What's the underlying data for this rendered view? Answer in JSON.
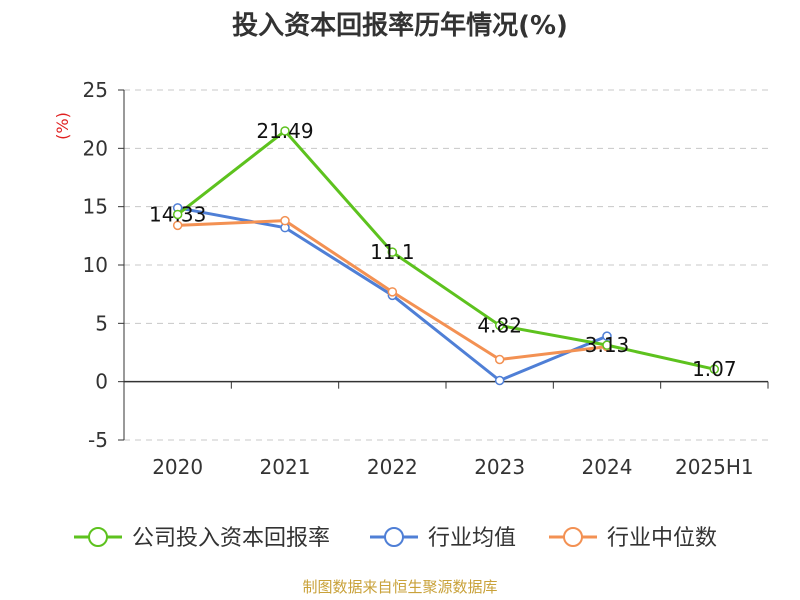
{
  "chart_data": {
    "type": "line",
    "title": "投入资本回报率历年情况(%)",
    "ylabel": "(%)",
    "xlabel": "",
    "categories": [
      "2020",
      "2021",
      "2022",
      "2023",
      "2024",
      "2025H1"
    ],
    "ylim": [
      -5,
      25
    ],
    "yticks": [
      -5,
      0,
      5,
      10,
      15,
      20,
      25
    ],
    "grid": true,
    "legend_position": "bottom",
    "series": [
      {
        "name": "公司投入资本回报率",
        "color": "#5dc21e",
        "values": [
          14.33,
          21.49,
          11.1,
          4.82,
          3.13,
          1.07
        ],
        "labels": [
          "14.33",
          "21.49",
          "11.1",
          "4.82",
          "3.13",
          "1.07"
        ]
      },
      {
        "name": "行业均值",
        "color": "#4f7fd6",
        "values": [
          14.9,
          13.2,
          7.4,
          0.1,
          3.9,
          null
        ]
      },
      {
        "name": "行业中位数",
        "color": "#f39153",
        "values": [
          13.4,
          13.8,
          7.7,
          1.9,
          3.0,
          null
        ]
      }
    ]
  },
  "source": "制图数据来自恒生聚源数据库"
}
